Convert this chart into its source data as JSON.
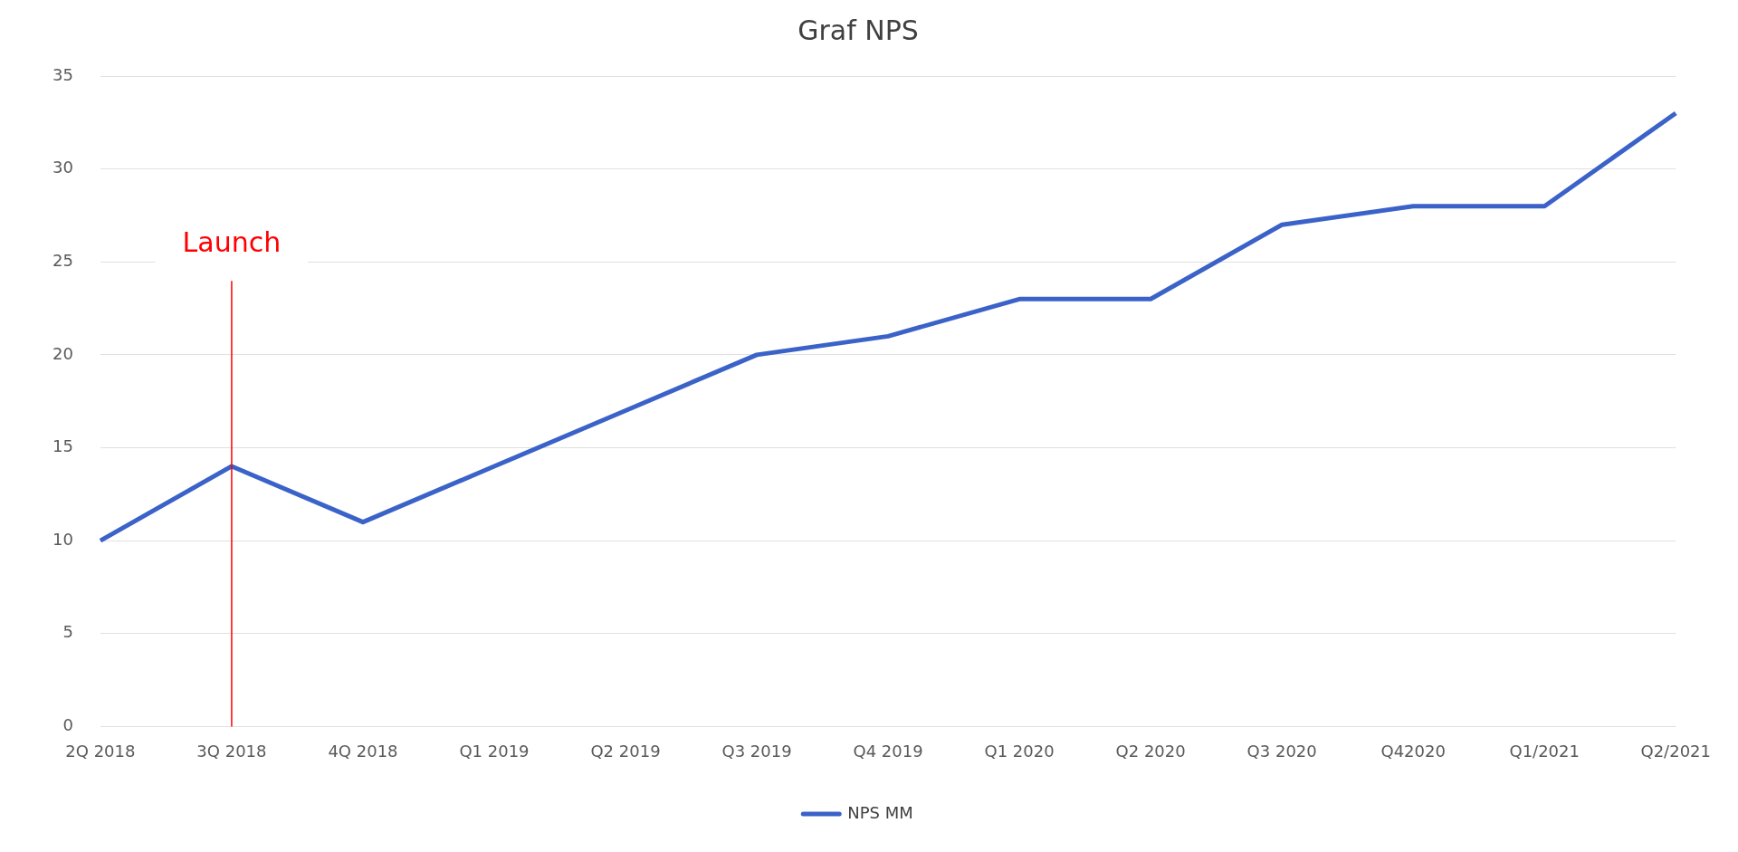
{
  "chart_data": {
    "type": "line",
    "title": "Graf NPS",
    "categories": [
      "2Q 2018",
      "3Q 2018",
      "4Q 2018",
      "Q1 2019",
      "Q2 2019",
      "Q3 2019",
      "Q4 2019",
      "Q1 2020",
      "Q2 2020",
      "Q3 2020",
      "Q42020",
      "Q1/2021",
      "Q2/2021"
    ],
    "series": [
      {
        "name": "NPS MM",
        "color": "#3a62c8",
        "values": [
          10,
          14,
          11,
          14,
          17,
          20,
          21,
          23,
          23,
          27,
          28,
          28,
          33
        ]
      }
    ],
    "ylim": [
      0,
      35
    ],
    "yticks": [
      0,
      5,
      10,
      15,
      20,
      25,
      30,
      35
    ],
    "grid": "y",
    "legend": "bottom",
    "marker": "none",
    "line_style": "solid",
    "ref_lines": [
      {
        "axis": "x",
        "value": "3Q 2018",
        "label": "Launch",
        "color": "#ff0000"
      }
    ]
  }
}
